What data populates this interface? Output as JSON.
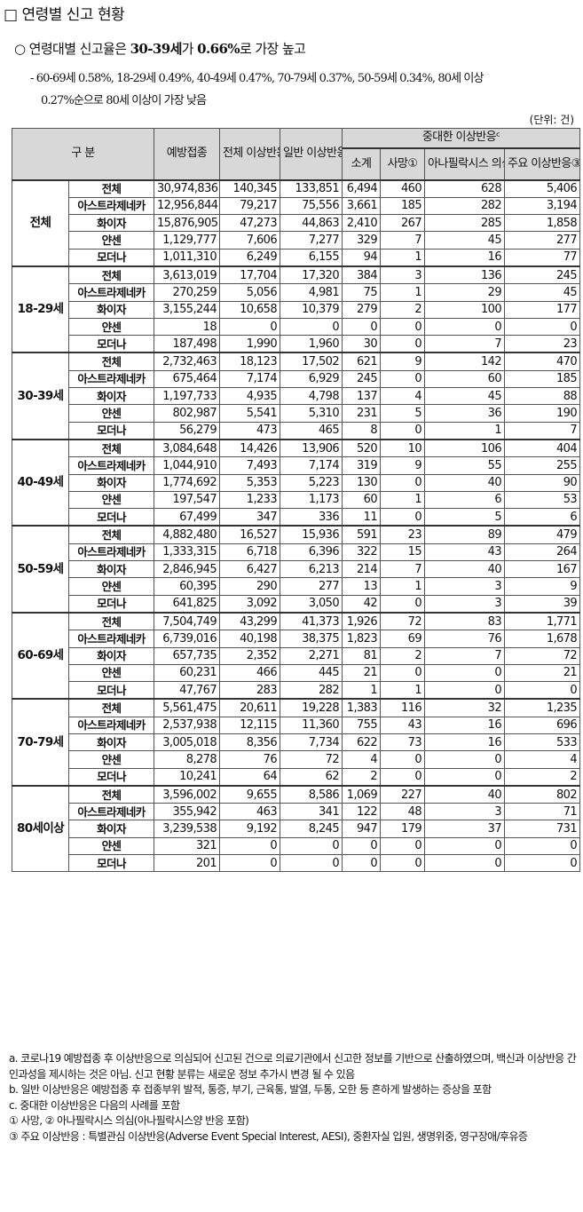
{
  "title": "□ 연령별 신고 현황",
  "summary": {
    "prefix": "○ 연령대별 신고율은 ",
    "bold1": "30-39세",
    "mid": "가 ",
    "bold2": "0.66%",
    "suffix": "로 가장 높고",
    "line1": "- 60-69세 0.58%, 18-29세 0.49%, 40-49세 0.47%, 70-79세 0.37%, 50-59세 0.34%, 80세 이상",
    "line2": "0.27%순으로 80세 이상이 가장 낮음"
  },
  "unit": "(단위: 건)",
  "headers": {
    "category": "구 분",
    "vaccinations": "예방접종",
    "total_ae": "전체 이상반응ª",
    "general_ae": "일반 이상반응ᵇ",
    "serious_ae": "중대한 이상반응ᶜ",
    "subtotal": "소계",
    "death": "사망①",
    "anaphylaxis": "아나필락시스 의심②",
    "major_ae": "주요 이상반응③"
  },
  "groups": [
    {
      "label": "전체",
      "rows": [
        {
          "vaccine": "전체",
          "vals": [
            "30,974,836",
            "140,345",
            "133,851",
            "6,494",
            "460",
            "628",
            "5,406"
          ]
        },
        {
          "vaccine": "아스트라제네카",
          "vals": [
            "12,956,844",
            "79,217",
            "75,556",
            "3,661",
            "185",
            "282",
            "3,194"
          ]
        },
        {
          "vaccine": "화이자",
          "vals": [
            "15,876,905",
            "47,273",
            "44,863",
            "2,410",
            "267",
            "285",
            "1,858"
          ]
        },
        {
          "vaccine": "얀센",
          "vals": [
            "1,129,777",
            "7,606",
            "7,277",
            "329",
            "7",
            "45",
            "277"
          ]
        },
        {
          "vaccine": "모더나",
          "vals": [
            "1,011,310",
            "6,249",
            "6,155",
            "94",
            "1",
            "16",
            "77"
          ]
        }
      ]
    },
    {
      "label": "18-29세",
      "rows": [
        {
          "vaccine": "전체",
          "vals": [
            "3,613,019",
            "17,704",
            "17,320",
            "384",
            "3",
            "136",
            "245"
          ]
        },
        {
          "vaccine": "아스트라제네카",
          "vals": [
            "270,259",
            "5,056",
            "4,981",
            "75",
            "1",
            "29",
            "45"
          ]
        },
        {
          "vaccine": "화이자",
          "vals": [
            "3,155,244",
            "10,658",
            "10,379",
            "279",
            "2",
            "100",
            "177"
          ]
        },
        {
          "vaccine": "얀센",
          "vals": [
            "18",
            "0",
            "0",
            "0",
            "0",
            "0",
            "0"
          ]
        },
        {
          "vaccine": "모더나",
          "vals": [
            "187,498",
            "1,990",
            "1,960",
            "30",
            "0",
            "7",
            "23"
          ]
        }
      ]
    },
    {
      "label": "30-39세",
      "rows": [
        {
          "vaccine": "전체",
          "vals": [
            "2,732,463",
            "18,123",
            "17,502",
            "621",
            "9",
            "142",
            "470"
          ]
        },
        {
          "vaccine": "아스트라제네카",
          "vals": [
            "675,464",
            "7,174",
            "6,929",
            "245",
            "0",
            "60",
            "185"
          ]
        },
        {
          "vaccine": "화이자",
          "vals": [
            "1,197,733",
            "4,935",
            "4,798",
            "137",
            "4",
            "45",
            "88"
          ]
        },
        {
          "vaccine": "얀센",
          "vals": [
            "802,987",
            "5,541",
            "5,310",
            "231",
            "5",
            "36",
            "190"
          ]
        },
        {
          "vaccine": "모더나",
          "vals": [
            "56,279",
            "473",
            "465",
            "8",
            "0",
            "1",
            "7"
          ]
        }
      ]
    },
    {
      "label": "40-49세",
      "rows": [
        {
          "vaccine": "전체",
          "vals": [
            "3,084,648",
            "14,426",
            "13,906",
            "520",
            "10",
            "106",
            "404"
          ]
        },
        {
          "vaccine": "아스트라제네카",
          "vals": [
            "1,044,910",
            "7,493",
            "7,174",
            "319",
            "9",
            "55",
            "255"
          ]
        },
        {
          "vaccine": "화이자",
          "vals": [
            "1,774,692",
            "5,353",
            "5,223",
            "130",
            "0",
            "40",
            "90"
          ]
        },
        {
          "vaccine": "얀센",
          "vals": [
            "197,547",
            "1,233",
            "1,173",
            "60",
            "1",
            "6",
            "53"
          ]
        },
        {
          "vaccine": "모더나",
          "vals": [
            "67,499",
            "347",
            "336",
            "11",
            "0",
            "5",
            "6"
          ]
        }
      ]
    },
    {
      "label": "50-59세",
      "rows": [
        {
          "vaccine": "전체",
          "vals": [
            "4,882,480",
            "16,527",
            "15,936",
            "591",
            "23",
            "89",
            "479"
          ]
        },
        {
          "vaccine": "아스트라제네카",
          "vals": [
            "1,333,315",
            "6,718",
            "6,396",
            "322",
            "15",
            "43",
            "264"
          ]
        },
        {
          "vaccine": "화이자",
          "vals": [
            "2,846,945",
            "6,427",
            "6,213",
            "214",
            "7",
            "40",
            "167"
          ]
        },
        {
          "vaccine": "얀센",
          "vals": [
            "60,395",
            "290",
            "277",
            "13",
            "1",
            "3",
            "9"
          ]
        },
        {
          "vaccine": "모더나",
          "vals": [
            "641,825",
            "3,092",
            "3,050",
            "42",
            "0",
            "3",
            "39"
          ]
        }
      ]
    },
    {
      "label": "60-69세",
      "rows": [
        {
          "vaccine": "전체",
          "vals": [
            "7,504,749",
            "43,299",
            "41,373",
            "1,926",
            "72",
            "83",
            "1,771"
          ]
        },
        {
          "vaccine": "아스트라제네카",
          "vals": [
            "6,739,016",
            "40,198",
            "38,375",
            "1,823",
            "69",
            "76",
            "1,678"
          ]
        },
        {
          "vaccine": "화이자",
          "vals": [
            "657,735",
            "2,352",
            "2,271",
            "81",
            "2",
            "7",
            "72"
          ]
        },
        {
          "vaccine": "얀센",
          "vals": [
            "60,231",
            "466",
            "445",
            "21",
            "0",
            "0",
            "21"
          ]
        },
        {
          "vaccine": "모더나",
          "vals": [
            "47,767",
            "283",
            "282",
            "1",
            "1",
            "0",
            "0"
          ]
        }
      ]
    },
    {
      "label": "70-79세",
      "rows": [
        {
          "vaccine": "전체",
          "vals": [
            "5,561,475",
            "20,611",
            "19,228",
            "1,383",
            "116",
            "32",
            "1,235"
          ]
        },
        {
          "vaccine": "아스트라제네카",
          "vals": [
            "2,537,938",
            "12,115",
            "11,360",
            "755",
            "43",
            "16",
            "696"
          ]
        },
        {
          "vaccine": "화이자",
          "vals": [
            "3,005,018",
            "8,356",
            "7,734",
            "622",
            "73",
            "16",
            "533"
          ]
        },
        {
          "vaccine": "얀센",
          "vals": [
            "8,278",
            "76",
            "72",
            "4",
            "0",
            "0",
            "4"
          ]
        },
        {
          "vaccine": "모더나",
          "vals": [
            "10,241",
            "64",
            "62",
            "2",
            "0",
            "0",
            "2"
          ]
        }
      ]
    },
    {
      "label": "80세이상",
      "rows": [
        {
          "vaccine": "전체",
          "vals": [
            "3,596,002",
            "9,655",
            "8,586",
            "1,069",
            "227",
            "40",
            "802"
          ]
        },
        {
          "vaccine": "아스트라제네카",
          "vals": [
            "355,942",
            "463",
            "341",
            "122",
            "48",
            "3",
            "71"
          ]
        },
        {
          "vaccine": "화이자",
          "vals": [
            "3,239,538",
            "9,192",
            "8,245",
            "947",
            "179",
            "37",
            "731"
          ]
        },
        {
          "vaccine": "얀센",
          "vals": [
            "321",
            "0",
            "0",
            "0",
            "0",
            "0",
            "0"
          ]
        },
        {
          "vaccine": "모더나",
          "vals": [
            "201",
            "0",
            "0",
            "0",
            "0",
            "0",
            "0"
          ]
        }
      ]
    }
  ],
  "notes": [
    "a. 코로나19 예방접종 후 이상반응으로 의심되어 신고된 건으로 의료기관에서 신고한 정보를 기반으로 산출하였으며, 백신과 이상반응 간 인과성을 제시하는 것은 아님. 신고 현황 분류는 새로운 정보 추가시 변경 될 수 있음",
    "b. 일반 이상반응은 예방접종 후 접종부위 발적, 통증, 부기, 근육통, 발열, 두통, 오한 등 흔하게 발생하는 증상을 포함",
    "c. 중대한 이상반응은 다음의 사례를 포함",
    "① 사망, ② 아나필락시스 의심(아나필락시스양 반응 포함)",
    "③ 주요 이상반응 : 특별관심 이상반응(Adverse Event Special Interest, AESI), 중환자실 입원, 생명위중, 영구장애/후유증"
  ]
}
